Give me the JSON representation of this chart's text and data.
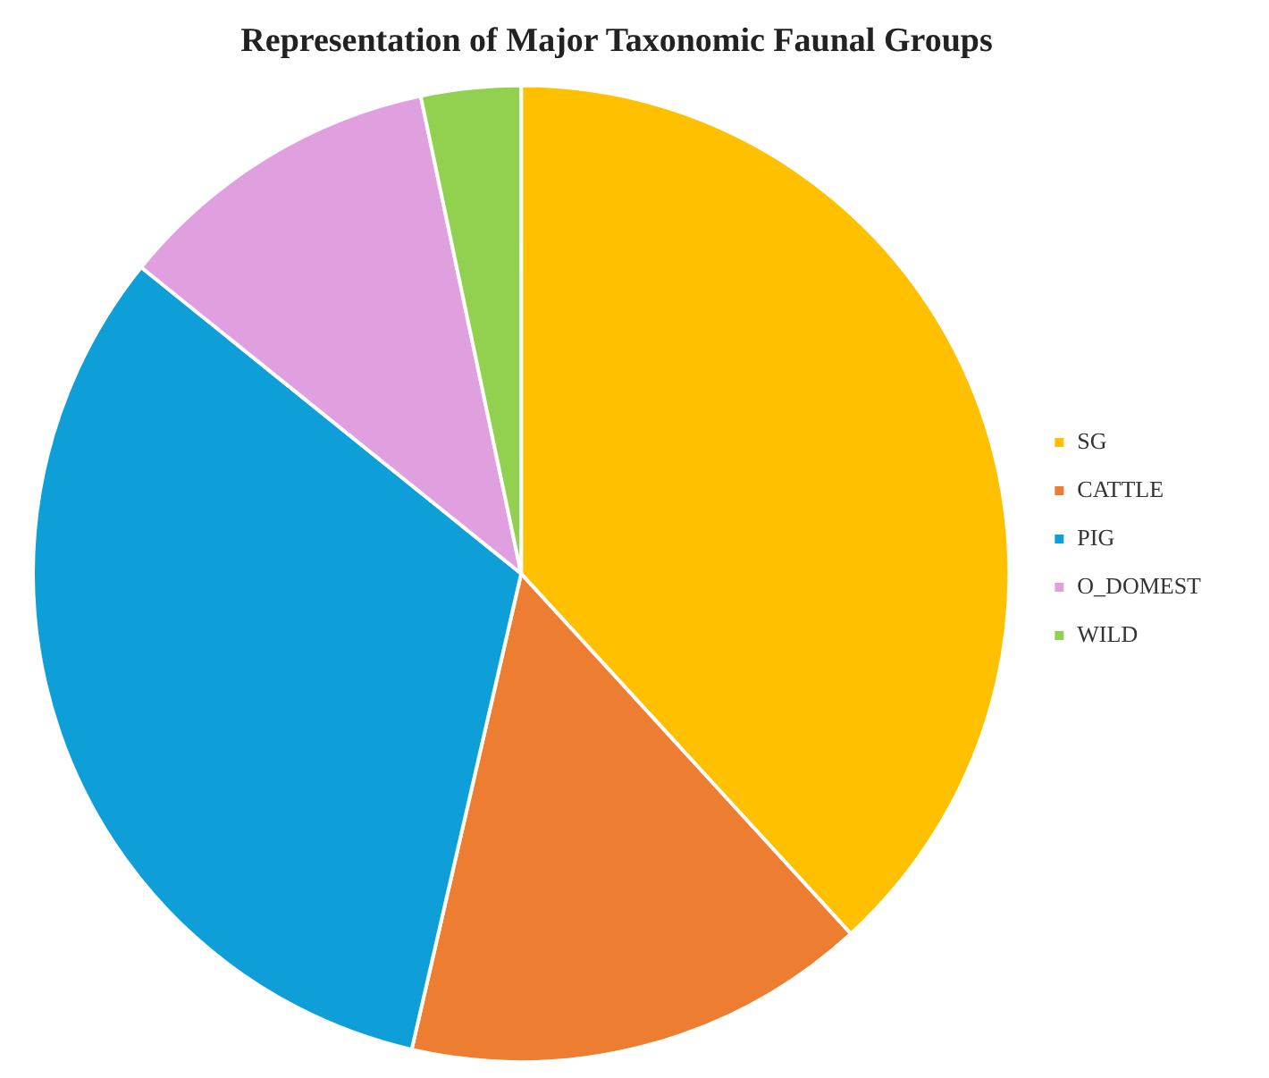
{
  "chart_data": {
    "type": "pie",
    "title": "Representation of Major Taxonomic Faunal Groups",
    "categories": [
      "SG",
      "CATTLE",
      "PIG",
      "O_DOMEST",
      "WILD"
    ],
    "values": [
      38.2,
      15.4,
      32.2,
      10.9,
      3.3
    ],
    "colors": [
      "#ffc000",
      "#ed7d31",
      "#0e9fd8",
      "#e0a0e0",
      "#92d050"
    ],
    "legend": "right"
  }
}
